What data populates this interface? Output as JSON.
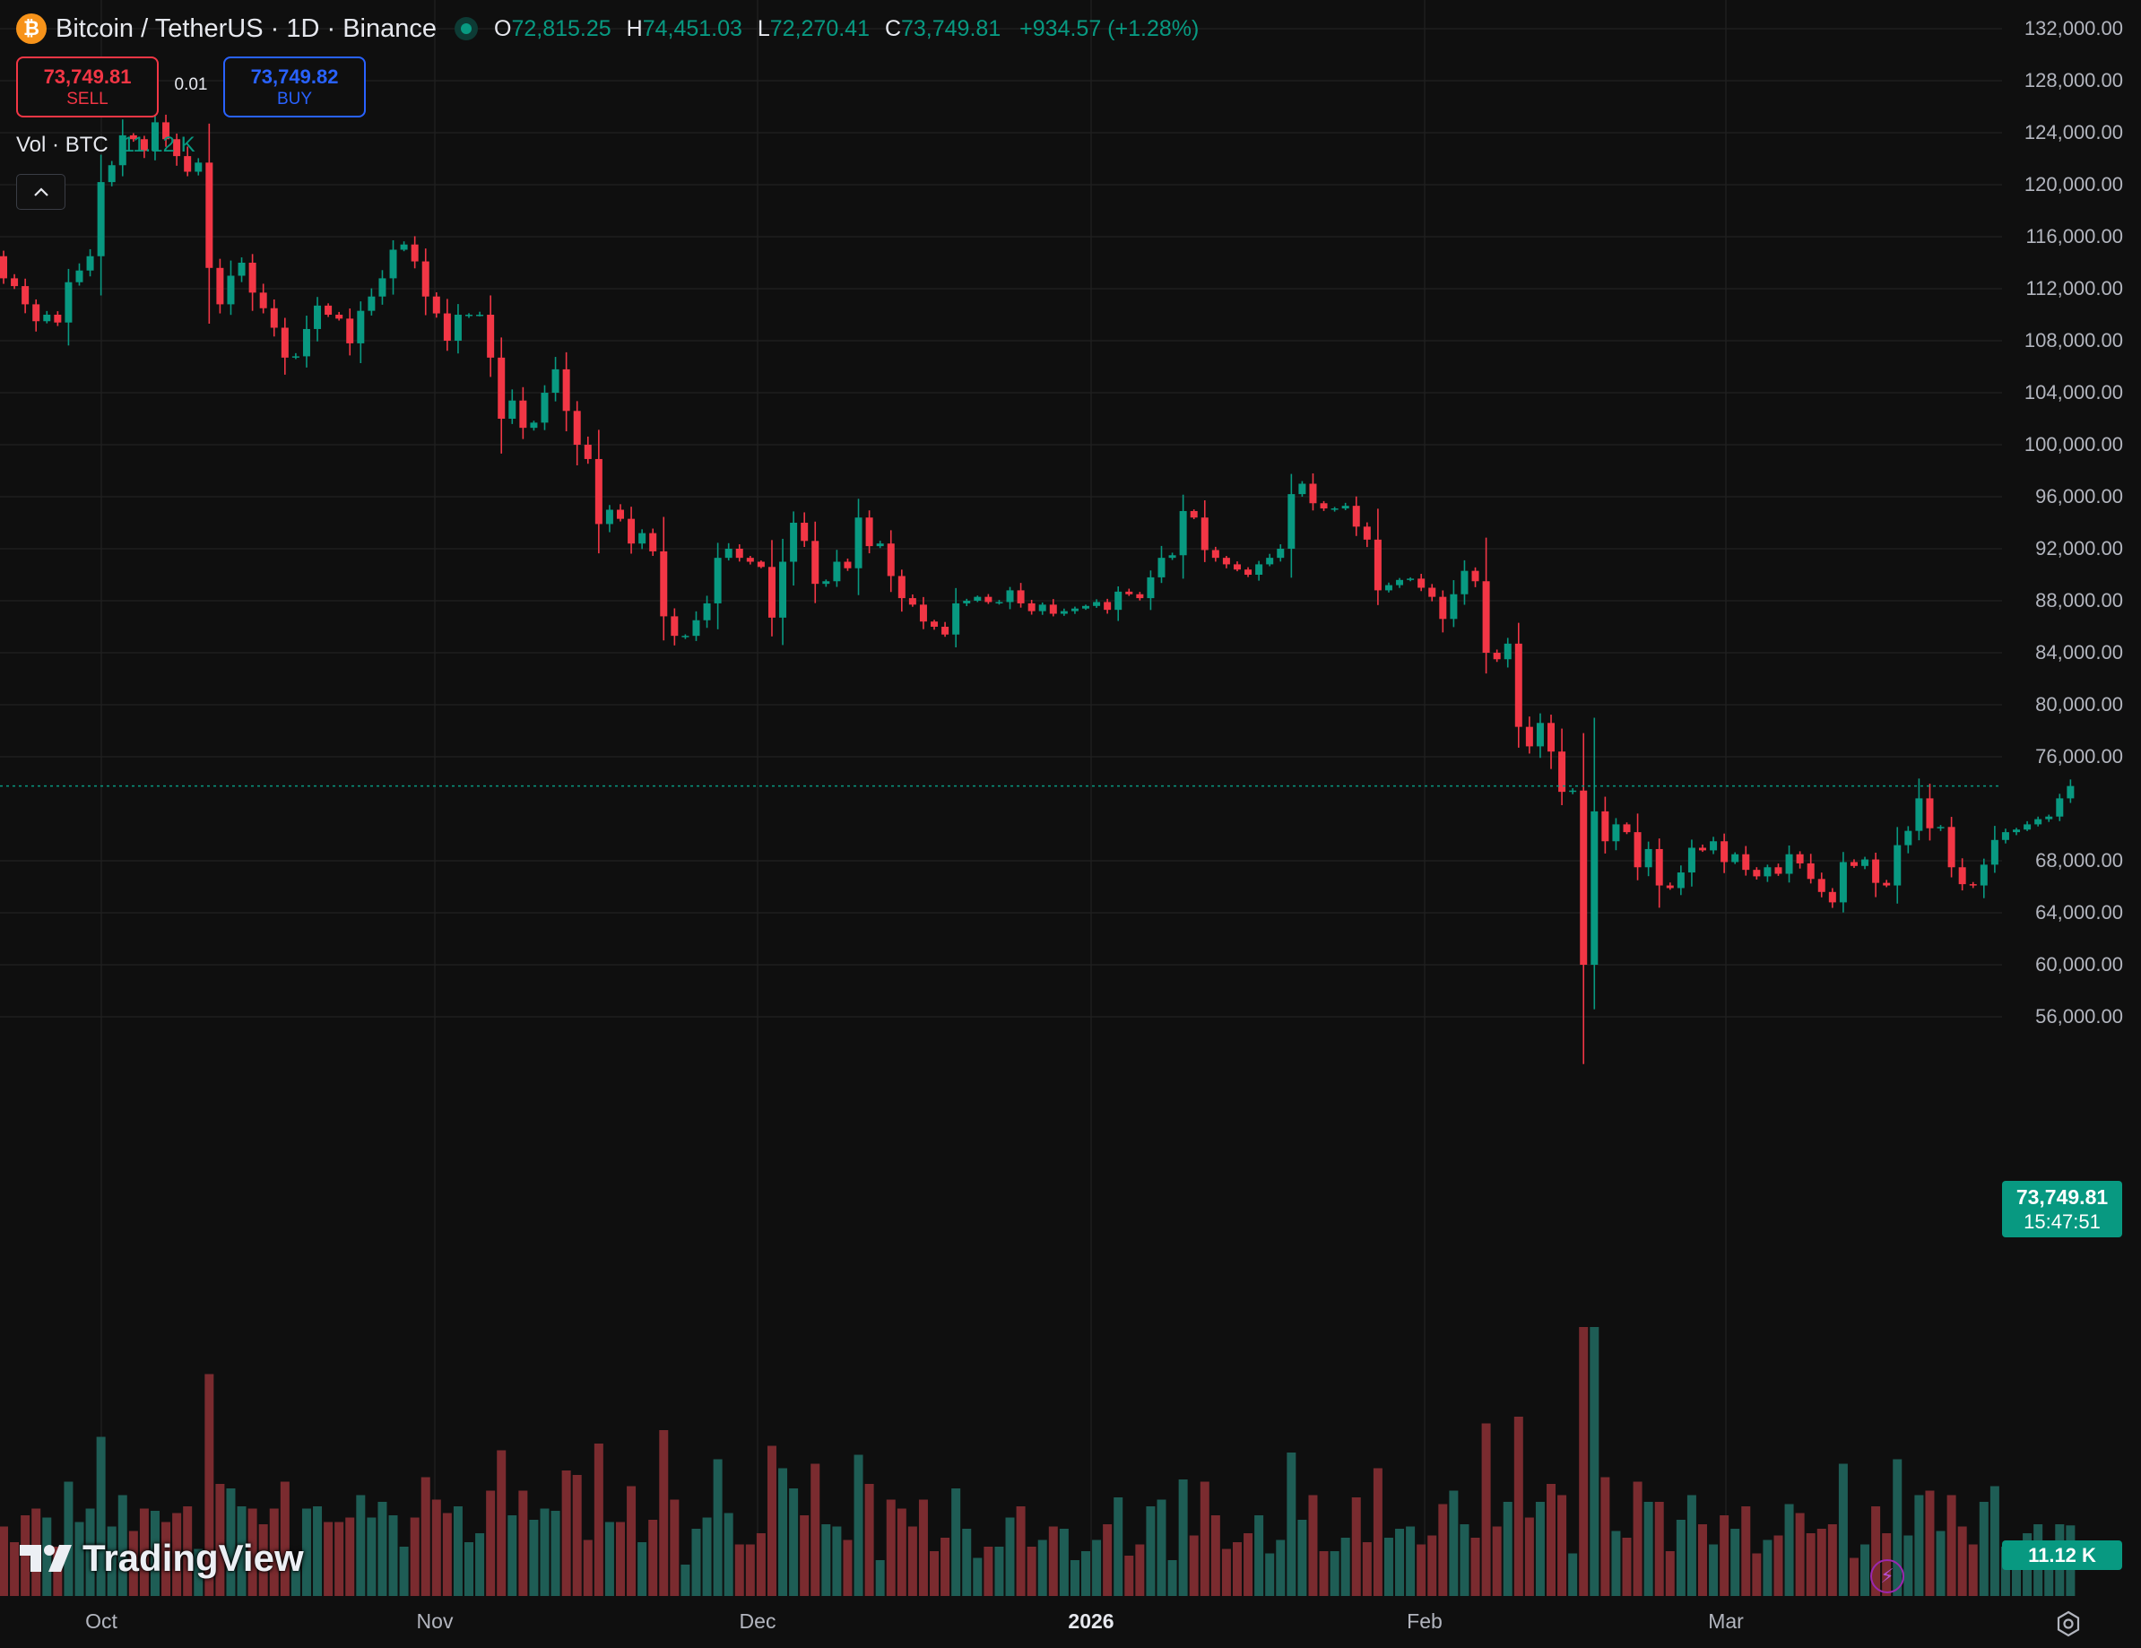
{
  "header": {
    "symbol": "Bitcoin / TetherUS · 1D · Binance",
    "coin_glyph": "₿",
    "coin_color": "#f7931a",
    "live_color": "#089981",
    "ohlc": {
      "o_label": "O",
      "o_value": "72,815.25",
      "h_label": "H",
      "h_value": "74,451.03",
      "l_label": "L",
      "l_value": "72,270.41",
      "c_label": "C",
      "c_value": "73,749.81",
      "change": "+934.57 (+1.28%)"
    }
  },
  "trade": {
    "sell_price": "73,749.81",
    "sell_label": "SELL",
    "buy_price": "73,749.82",
    "buy_label": "BUY",
    "quantity": "0.01"
  },
  "volume_legend": {
    "label": "Vol · BTC",
    "value": "11.12 K"
  },
  "collapse_icon": "chevron-up-icon",
  "price_axis_ticks": [
    "132,000.00",
    "128,000.00",
    "124,000.00",
    "120,000.00",
    "116,000.00",
    "112,000.00",
    "108,000.00",
    "104,000.00",
    "100,000.00",
    "96,000.00",
    "92,000.00",
    "88,000.00",
    "84,000.00",
    "80,000.00",
    "76,000.00",
    "68,000.00",
    "64,000.00",
    "60,000.00",
    "56,000.00"
  ],
  "time_axis_ticks": [
    {
      "label": "Oct",
      "bold": false
    },
    {
      "label": "Nov",
      "bold": false
    },
    {
      "label": "Dec",
      "bold": false
    },
    {
      "label": "2026",
      "bold": true
    },
    {
      "label": "Feb",
      "bold": false
    },
    {
      "label": "Mar",
      "bold": false
    }
  ],
  "last_price": {
    "value": "73,749.81",
    "countdown": "15:47:51"
  },
  "last_volume": "11.12 K",
  "branding": "TradingView",
  "colors": {
    "up": "#089981",
    "down": "#f23645",
    "up_volume": "#1e5d55",
    "down_volume": "#7a2b2f",
    "sell": "#f23645",
    "buy": "#2962ff",
    "background": "#0f0f0f",
    "grid": "#1f1f1f"
  },
  "chart_data": {
    "type": "candlestick",
    "ylim": [
      53000,
      133000
    ],
    "grid": true,
    "x_labels": [
      "Oct",
      "Nov",
      "Dec",
      "2026",
      "Feb",
      "Mar"
    ],
    "closes_approx": [
      112800,
      112200,
      110800,
      109500,
      110000,
      109400,
      112500,
      113400,
      114500,
      120200,
      121500,
      123800,
      123500,
      122600,
      124800,
      123500,
      122200,
      121000,
      121700,
      113600,
      110800,
      113000,
      114000,
      111700,
      110500,
      109000,
      106700,
      106800,
      108900,
      110700,
      110000,
      109700,
      107800,
      110300,
      111400,
      112800,
      115000,
      115400,
      114100,
      111400,
      110100,
      108000,
      110000,
      110000,
      110000,
      106700,
      102000,
      103400,
      101300,
      101700,
      104000,
      105800,
      102600,
      100000,
      98900,
      93900,
      95000,
      94300,
      92400,
      93200,
      91800,
      86800,
      85300,
      85300,
      86500,
      87800,
      91300,
      92000,
      91300,
      91000,
      90600,
      86700,
      91000,
      94000,
      92600,
      89300,
      89500,
      91000,
      90500,
      94400,
      92200,
      92400,
      89900,
      88200,
      87700,
      86400,
      86000,
      85400,
      87800,
      88000,
      88300,
      87900,
      87900,
      88800,
      87800,
      87200,
      87700,
      87000,
      87200,
      87400,
      87600,
      87900,
      87300,
      88700,
      88500,
      88200,
      89800,
      91300,
      91500,
      94900,
      94400,
      91900,
      91300,
      90800,
      90400,
      90000,
      90800,
      91300,
      92000,
      96200,
      97000,
      95500,
      95100,
      95100,
      95300,
      93700,
      92700,
      88800,
      89200,
      89600,
      89700,
      89000,
      88300,
      86600,
      88500,
      90300,
      89500,
      84000,
      83500,
      84700,
      78300,
      76800,
      78600,
      76400,
      73300,
      73400,
      60000,
      71800,
      69500,
      70800,
      70200,
      67500,
      68900,
      66100,
      65900,
      67100,
      69000,
      68800,
      69500,
      67900,
      68500,
      67300,
      66800,
      67500,
      67000,
      68500,
      67800,
      66600,
      65600,
      64800,
      67900,
      67600,
      68100,
      66300,
      66100,
      69200,
      70300,
      72800,
      70500,
      70600,
      67500,
      66200,
      66100,
      67700,
      69600,
      70200,
      70400,
      70800,
      71200,
      71400,
      72800,
      73750
    ]
  }
}
